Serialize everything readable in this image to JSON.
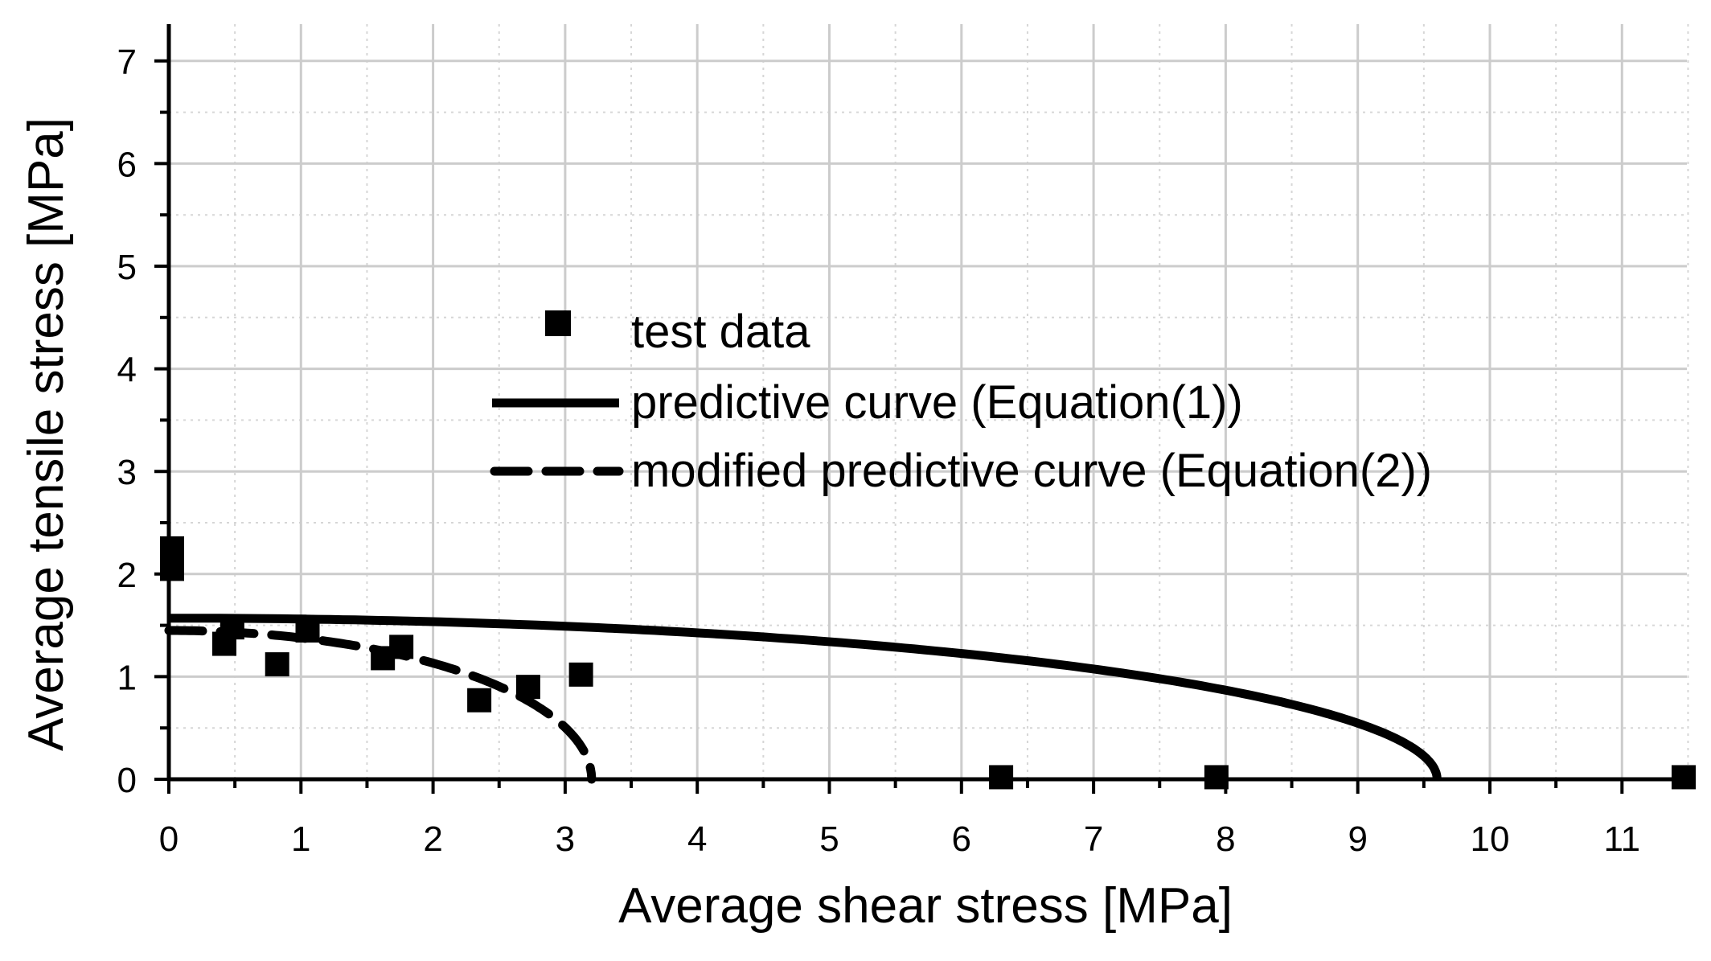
{
  "chart_data": {
    "type": "scatter",
    "title": "",
    "xlabel": "Average shear stress [MPa]",
    "ylabel": "Average tensile stress [MPa]",
    "xlim": [
      0,
      11.5
    ],
    "ylim": [
      0,
      7.4
    ],
    "xticks": [
      "0",
      "1",
      "2",
      "3",
      "4",
      "5",
      "6",
      "7",
      "8",
      "9",
      "10",
      "11"
    ],
    "yticks": [
      "0",
      "1",
      "2",
      "3",
      "4",
      "5",
      "6",
      "7"
    ],
    "grid": true,
    "legend_position": "center",
    "series": [
      {
        "name": "test data",
        "kind": "markers",
        "x": [
          0.0,
          0.0,
          0.42,
          0.48,
          0.82,
          1.05,
          1.62,
          1.76,
          2.35,
          2.72,
          3.12,
          6.3,
          7.93,
          11.5
        ],
        "y": [
          2.25,
          2.05,
          1.32,
          1.48,
          1.12,
          1.45,
          1.18,
          1.29,
          0.77,
          0.9,
          1.02,
          0.02,
          0.02,
          0.02
        ]
      },
      {
        "name": "predictive curve (Equation(1))",
        "kind": "solid-line",
        "tau_max": 9.6,
        "sigma_max": 1.57
      },
      {
        "name": "modified predictive curve (Equation(2))",
        "kind": "dashed-line",
        "tau_max": 3.2,
        "sigma_max": 1.45
      }
    ]
  }
}
